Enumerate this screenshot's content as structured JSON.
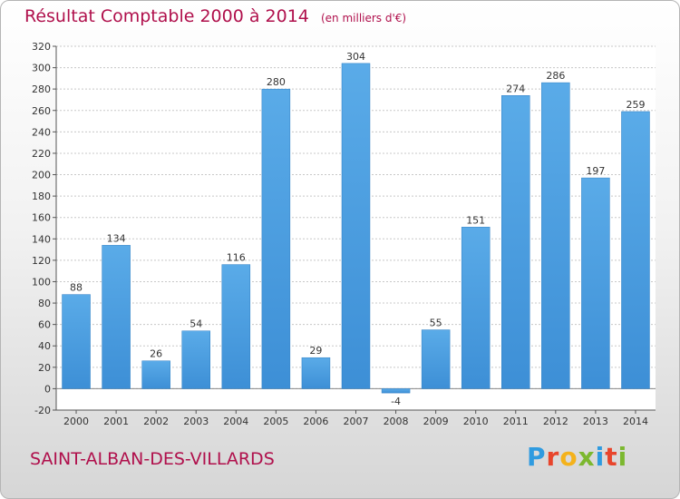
{
  "title": "Résultat Comptable 2000 à 2014",
  "unit": "(en milliers d'€)",
  "commune": "SAINT-ALBAN-DES-VILLARDS",
  "logo": {
    "letters": [
      "P",
      "r",
      "o",
      "x",
      "i",
      "t",
      "i"
    ],
    "colors": [
      "#2f9be0",
      "#e8452c",
      "#f4b21b",
      "#7cb82f",
      "#2f9be0",
      "#e8452c",
      "#7cb82f"
    ]
  },
  "colors": {
    "bar": "#3d8fd6",
    "bar_light": "#5aabe8",
    "title": "#b0104c",
    "grid": "#c8c8c8"
  },
  "chart_data": {
    "type": "bar",
    "categories": [
      "2000",
      "2001",
      "2002",
      "2003",
      "2004",
      "2005",
      "2006",
      "2007",
      "2008",
      "2009",
      "2010",
      "2011",
      "2012",
      "2013",
      "2014"
    ],
    "values": [
      88,
      134,
      26,
      54,
      116,
      280,
      29,
      304,
      -4,
      55,
      151,
      274,
      286,
      197,
      259
    ],
    "ylim": [
      -20,
      320
    ],
    "ytick_step": 20,
    "grid": true,
    "data_labels": true
  }
}
